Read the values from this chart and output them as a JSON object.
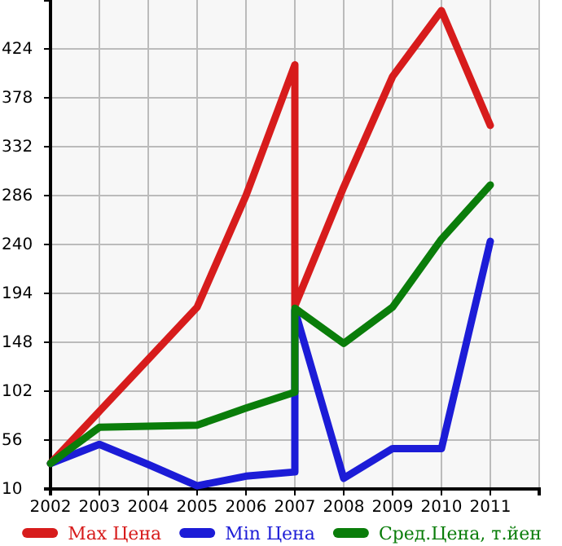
{
  "chart_data": {
    "type": "line",
    "x": [
      2002,
      2003,
      2004,
      2005,
      2006,
      2007,
      2007,
      2008,
      2009,
      2010,
      2011
    ],
    "series": [
      {
        "name": "Max Цена",
        "color": "#d71c1c",
        "values": [
          34,
          83,
          132,
          181,
          286,
          409,
          182,
          294,
          398,
          460,
          352
        ]
      },
      {
        "name": "Min Цена",
        "color": "#1c1cd7",
        "values": [
          34,
          52,
          33,
          13,
          22,
          26,
          178,
          20,
          48,
          48,
          243
        ]
      },
      {
        "name": "Сред.Цена, т.йен",
        "color": "#0a7d0a",
        "values": [
          34,
          68,
          69,
          70,
          86,
          101,
          180,
          147,
          181,
          245,
          296
        ]
      }
    ],
    "xlim": [
      2002,
      2012
    ],
    "xticks": [
      2002,
      2003,
      2004,
      2005,
      2006,
      2007,
      2008,
      2009,
      2010,
      2011,
      {
        "value": 2012,
        "label": null
      }
    ],
    "ylim": [
      10,
      470
    ],
    "yticks": [
      10,
      56,
      102,
      148,
      194,
      240,
      286,
      332,
      378,
      424
    ],
    "grid": true,
    "legend": "bottom",
    "marker": "none",
    "line_style": "solid"
  }
}
